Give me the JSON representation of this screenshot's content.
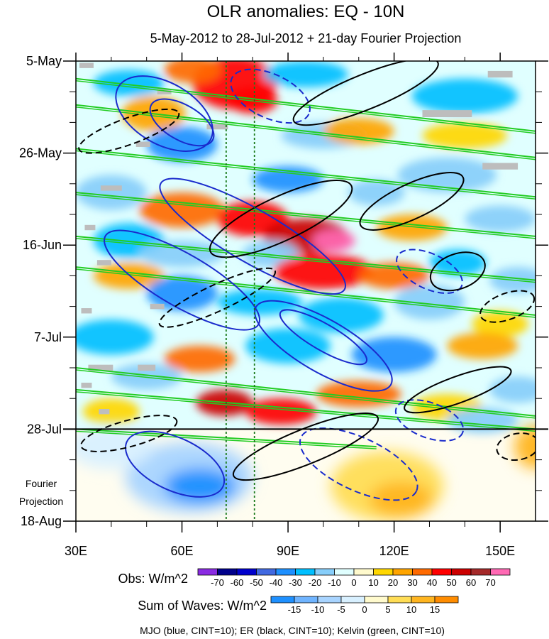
{
  "chart_data": {
    "type": "heatmap",
    "title": "OLR anomalies: EQ - 10N",
    "subtitle": "5-May-2012 to 28-Jul-2012 + 21-day Fourier Projection",
    "x_axis": {
      "range": [
        30,
        160
      ],
      "ticks": [
        30,
        60,
        90,
        120,
        150
      ],
      "tick_labels": [
        "30E",
        "60E",
        "90E",
        "120E",
        "150E"
      ]
    },
    "y_axis": {
      "range": [
        "5-May",
        "18-Aug"
      ],
      "ticks": [
        0,
        21,
        42,
        63,
        84,
        105
      ],
      "tick_labels": [
        "5-May",
        "26-May",
        "16-Jun",
        "7-Jul",
        "28-Jul",
        "18-Aug"
      ],
      "reversed": true
    },
    "observation_end_label": "28-Jul",
    "fourier_label": [
      "Fourier",
      "Projection"
    ],
    "reference_lines_lon": [
      72.5,
      80.5
    ],
    "obs_colorbar": {
      "label": "Obs: W/m^2",
      "levels": [
        -70,
        -60,
        -50,
        -40,
        -30,
        -20,
        -10,
        0,
        10,
        20,
        30,
        40,
        50,
        60,
        70
      ],
      "colors": [
        "#8a2be2",
        "#00008b",
        "#0000cd",
        "#4169e1",
        "#1e90ff",
        "#00bfff",
        "#87cefa",
        "#e0ffff",
        "#fffacd",
        "#ffd700",
        "#ffa500",
        "#ff6a00",
        "#ff0000",
        "#cc0000",
        "#a52a2a",
        "#ff69b4"
      ]
    },
    "waves_colorbar": {
      "label": "Sum of Waves: W/m^2",
      "levels": [
        -15,
        -10,
        -5,
        0,
        5,
        10,
        15
      ],
      "colors": [
        "#1e90ff",
        "#6fb4ff",
        "#a8d4ff",
        "#d8f0ff",
        "#fffacd",
        "#ffdd55",
        "#ffb520",
        "#ff8c00"
      ]
    },
    "legend_text": "MJO (blue, CINT=10); ER (black, CINT=10); Kelvin (green, CINT=10)",
    "wave_colors": {
      "mjo": "#1a2bcc",
      "er": "#000000",
      "kelvin": "#22cc22"
    },
    "anomaly_blobs": [
      {
        "lon": 75,
        "day": 5,
        "rl": 12,
        "rd": 6,
        "v": 45
      },
      {
        "lon": 63,
        "day": 2,
        "rl": 8,
        "rd": 3,
        "v": 30
      },
      {
        "lon": 80,
        "day": 9,
        "rl": 7,
        "rd": 3,
        "v": 40
      },
      {
        "lon": 52,
        "day": 12,
        "rl": 9,
        "rd": 4,
        "v": 25
      },
      {
        "lon": 45,
        "day": 5,
        "rl": 10,
        "rd": 3,
        "v": -30
      },
      {
        "lon": 95,
        "day": 3,
        "rl": 12,
        "rd": 3,
        "v": -25
      },
      {
        "lon": 140,
        "day": 8,
        "rl": 15,
        "rd": 4,
        "v": -25
      },
      {
        "lon": 60,
        "day": 19,
        "rl": 10,
        "rd": 4,
        "v": -40
      },
      {
        "lon": 100,
        "day": 17,
        "rl": 12,
        "rd": 3,
        "v": -20
      },
      {
        "lon": 110,
        "day": 16,
        "rl": 10,
        "rd": 3,
        "v": 20
      },
      {
        "lon": 140,
        "day": 17,
        "rl": 12,
        "rd": 3,
        "v": 15
      },
      {
        "lon": 90,
        "day": 27,
        "rl": 10,
        "rd": 3,
        "v": -35
      },
      {
        "lon": 115,
        "day": 30,
        "rl": 8,
        "rd": 3,
        "v": -20
      },
      {
        "lon": 135,
        "day": 26,
        "rl": 14,
        "rd": 4,
        "v": -15
      },
      {
        "lon": 40,
        "day": 30,
        "rl": 10,
        "rd": 4,
        "v": -20
      },
      {
        "lon": 60,
        "day": 34,
        "rl": 12,
        "rd": 4,
        "v": 30
      },
      {
        "lon": 80,
        "day": 36,
        "rl": 10,
        "rd": 4,
        "v": 40
      },
      {
        "lon": 95,
        "day": 40,
        "rl": 12,
        "rd": 4,
        "v": 50
      },
      {
        "lon": 103,
        "day": 41,
        "rl": 6,
        "rd": 2.5,
        "v": 75
      },
      {
        "lon": 125,
        "day": 38,
        "rl": 10,
        "rd": 3,
        "v": 25
      },
      {
        "lon": 150,
        "day": 36,
        "rl": 10,
        "rd": 3,
        "v": -20
      },
      {
        "lon": 45,
        "day": 41,
        "rl": 10,
        "rd": 4,
        "v": -30
      },
      {
        "lon": 60,
        "day": 44,
        "rl": 12,
        "rd": 3,
        "v": -20
      },
      {
        "lon": 85,
        "day": 44,
        "rl": 8,
        "rd": 3,
        "v": -15
      },
      {
        "lon": 100,
        "day": 48,
        "rl": 14,
        "rd": 4,
        "v": 45
      },
      {
        "lon": 120,
        "day": 49,
        "rl": 10,
        "rd": 3,
        "v": 30
      },
      {
        "lon": 138,
        "day": 46,
        "rl": 8,
        "rd": 3,
        "v": -25
      },
      {
        "lon": 155,
        "day": 50,
        "rl": 8,
        "rd": 3,
        "v": -15
      },
      {
        "lon": 45,
        "day": 49,
        "rl": 10,
        "rd": 3,
        "v": 25
      },
      {
        "lon": 60,
        "day": 53,
        "rl": 10,
        "rd": 4,
        "v": -35
      },
      {
        "lon": 82,
        "day": 55,
        "rl": 12,
        "rd": 3,
        "v": -25
      },
      {
        "lon": 105,
        "day": 58,
        "rl": 12,
        "rd": 4,
        "v": -30
      },
      {
        "lon": 130,
        "day": 55,
        "rl": 10,
        "rd": 4,
        "v": -20
      },
      {
        "lon": 150,
        "day": 60,
        "rl": 8,
        "rd": 3,
        "v": 15
      },
      {
        "lon": 40,
        "day": 63,
        "rl": 12,
        "rd": 4,
        "v": -25
      },
      {
        "lon": 65,
        "day": 68,
        "rl": 10,
        "rd": 3,
        "v": 30
      },
      {
        "lon": 90,
        "day": 65,
        "rl": 12,
        "rd": 4,
        "v": -30
      },
      {
        "lon": 120,
        "day": 67,
        "rl": 12,
        "rd": 4,
        "v": -35
      },
      {
        "lon": 145,
        "day": 65,
        "rl": 10,
        "rd": 3,
        "v": 20
      },
      {
        "lon": 50,
        "day": 72,
        "rl": 10,
        "rd": 3,
        "v": -20
      },
      {
        "lon": 72,
        "day": 78,
        "rl": 8,
        "rd": 3,
        "v": 55
      },
      {
        "lon": 88,
        "day": 80,
        "rl": 10,
        "rd": 3,
        "v": 45
      },
      {
        "lon": 110,
        "day": 76,
        "rl": 12,
        "rd": 3,
        "v": 35
      },
      {
        "lon": 135,
        "day": 79,
        "rl": 10,
        "rd": 3,
        "v": 15
      },
      {
        "lon": 155,
        "day": 75,
        "rl": 8,
        "rd": 3,
        "v": -20
      },
      {
        "lon": 40,
        "day": 80,
        "rl": 8,
        "rd": 3,
        "v": 15
      },
      {
        "lon": 145,
        "day": 82,
        "rl": 10,
        "rd": 3,
        "v": -15
      }
    ],
    "missing_patches": [
      {
        "lon": 33,
        "day": 1,
        "w": 4,
        "h": 1.2
      },
      {
        "lon": 150,
        "day": 3,
        "w": 7,
        "h": 1.5
      },
      {
        "lon": 55,
        "day": 7,
        "w": 4,
        "h": 1.2
      },
      {
        "lon": 135,
        "day": 12,
        "w": 14,
        "h": 1.6
      },
      {
        "lon": 70,
        "day": 15,
        "w": 6,
        "h": 1.2
      },
      {
        "lon": 49,
        "day": 19,
        "w": 4,
        "h": 1.2
      },
      {
        "lon": 150,
        "day": 24,
        "w": 10,
        "h": 1.5
      },
      {
        "lon": 40,
        "day": 29,
        "w": 6,
        "h": 1.2
      },
      {
        "lon": 34,
        "day": 38,
        "w": 3,
        "h": 1.2
      },
      {
        "lon": 38,
        "day": 46,
        "w": 4,
        "h": 1.2
      },
      {
        "lon": 53,
        "day": 56,
        "w": 4,
        "h": 1.2
      },
      {
        "lon": 33,
        "day": 57,
        "w": 3,
        "h": 1.2
      },
      {
        "lon": 37,
        "day": 70,
        "w": 7,
        "h": 1.4
      },
      {
        "lon": 50,
        "day": 70,
        "w": 5,
        "h": 1.4
      },
      {
        "lon": 33,
        "day": 74,
        "w": 3,
        "h": 1.2
      },
      {
        "lon": 38,
        "day": 80,
        "w": 3,
        "h": 1.2
      }
    ],
    "projection_blobs": [
      {
        "lon": 62,
        "day": 95,
        "rl": 18,
        "rd": 8,
        "v": -10
      },
      {
        "lon": 65,
        "day": 97,
        "rl": 10,
        "rd": 4,
        "v": -16
      },
      {
        "lon": 118,
        "day": 97,
        "rl": 16,
        "rd": 8,
        "v": 8
      },
      {
        "lon": 122,
        "day": 100,
        "rl": 9,
        "rd": 4,
        "v": 12
      },
      {
        "lon": 160,
        "day": 88,
        "rl": 6,
        "rd": 5,
        "v": 10
      },
      {
        "lon": 40,
        "day": 88,
        "rl": 12,
        "rd": 5,
        "v": -4
      }
    ],
    "mjo_contours": [
      {
        "lon": 55,
        "day": 12,
        "rl": 15,
        "rd": 7,
        "rot": 30,
        "dash": false
      },
      {
        "lon": 60,
        "day": 14,
        "rl": 10,
        "rd": 4,
        "rot": 30,
        "dash": false
      },
      {
        "lon": 85,
        "day": 8,
        "rl": 12,
        "rd": 5,
        "rot": 25,
        "dash": true
      },
      {
        "lon": 80,
        "day": 40,
        "rl": 30,
        "rd": 6,
        "rot": 30,
        "dash": false
      },
      {
        "lon": 60,
        "day": 50,
        "rl": 25,
        "rd": 6,
        "rot": 30,
        "dash": false
      },
      {
        "lon": 100,
        "day": 65,
        "rl": 22,
        "rd": 6,
        "rot": 30,
        "dash": false
      },
      {
        "lon": 100,
        "day": 63,
        "rl": 14,
        "rd": 3,
        "rot": 30,
        "dash": false
      },
      {
        "lon": 110,
        "day": 92,
        "rl": 18,
        "rd": 6,
        "rot": 25,
        "dash": true
      },
      {
        "lon": 58,
        "day": 92,
        "rl": 15,
        "rd": 6,
        "rot": 25,
        "dash": false
      },
      {
        "lon": 130,
        "day": 48,
        "rl": 10,
        "rd": 4,
        "rot": 25,
        "dash": true
      },
      {
        "lon": 130,
        "day": 82,
        "rl": 10,
        "rd": 4,
        "rot": 20,
        "dash": true
      }
    ],
    "er_contours": [
      {
        "lon": 112,
        "day": 7,
        "rl": 22,
        "rd": 4,
        "rot": -22,
        "dash": false
      },
      {
        "lon": 45,
        "day": 16,
        "rl": 15,
        "rd": 3,
        "rot": -20,
        "dash": true
      },
      {
        "lon": 88,
        "day": 36,
        "rl": 22,
        "rd": 5,
        "rot": -25,
        "dash": false
      },
      {
        "lon": 125,
        "day": 32,
        "rl": 16,
        "rd": 4,
        "rot": -25,
        "dash": false
      },
      {
        "lon": 70,
        "day": 54,
        "rl": 18,
        "rd": 3,
        "rot": -25,
        "dash": true
      },
      {
        "lon": 138,
        "day": 48,
        "rl": 8,
        "rd": 4,
        "rot": -20,
        "dash": false
      },
      {
        "lon": 152,
        "day": 56,
        "rl": 8,
        "rd": 3,
        "rot": -20,
        "dash": true
      },
      {
        "lon": 138,
        "day": 75,
        "rl": 16,
        "rd": 3,
        "rot": -20,
        "dash": false
      },
      {
        "lon": 95,
        "day": 88,
        "rl": 22,
        "rd": 4,
        "rot": -22,
        "dash": false
      },
      {
        "lon": 45,
        "day": 85,
        "rl": 14,
        "rd": 3,
        "rot": -15,
        "dash": true
      },
      {
        "lon": 155,
        "day": 88,
        "rl": 6,
        "rd": 3,
        "rot": -10,
        "dash": true
      }
    ],
    "kelvin_bands": [
      {
        "lon1": 30,
        "day1": 4,
        "lon2": 160,
        "day2": 16
      },
      {
        "lon1": 30,
        "day1": 10,
        "lon2": 160,
        "day2": 22
      },
      {
        "lon1": 30,
        "day1": 20,
        "lon2": 160,
        "day2": 31
      },
      {
        "lon1": 30,
        "day1": 30,
        "lon2": 160,
        "day2": 40
      },
      {
        "lon1": 30,
        "day1": 40,
        "lon2": 160,
        "day2": 50
      },
      {
        "lon1": 30,
        "day1": 47,
        "lon2": 160,
        "day2": 58
      },
      {
        "lon1": 30,
        "day1": 70,
        "lon2": 160,
        "day2": 81
      },
      {
        "lon1": 30,
        "day1": 75,
        "lon2": 160,
        "day2": 84
      },
      {
        "lon1": 30,
        "day1": 84,
        "lon2": 115,
        "day2": 88
      }
    ]
  }
}
